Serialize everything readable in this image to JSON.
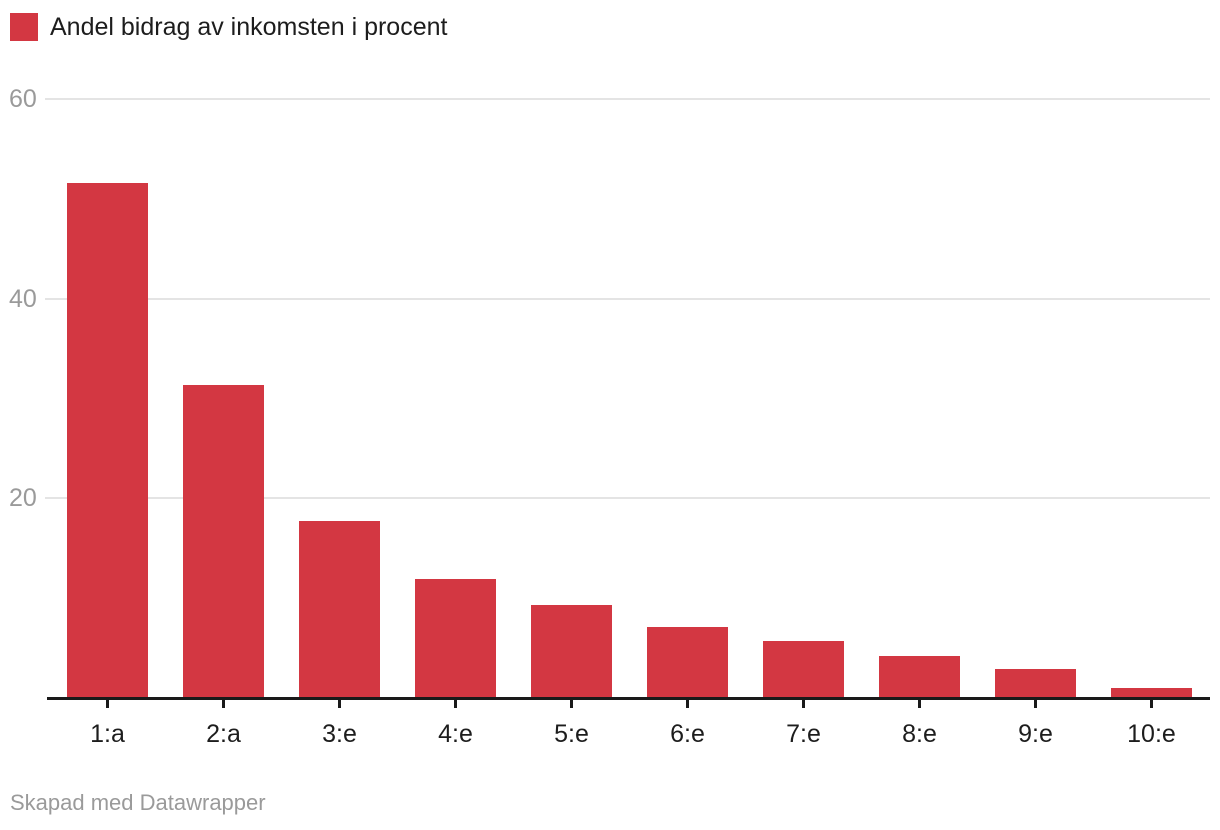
{
  "legend": {
    "label": "Andel bidrag av inkomsten i procent",
    "swatch_color": "#d33742"
  },
  "footer": {
    "text": "Skapad med Datawrapper"
  },
  "chart_data": {
    "type": "bar",
    "title": "",
    "xlabel": "",
    "ylabel": "",
    "categories": [
      "1:a",
      "2:a",
      "3:e",
      "4:e",
      "5:e",
      "6:e",
      "7:e",
      "8:e",
      "9:e",
      "10:e"
    ],
    "series": [
      {
        "name": "Andel bidrag av inkomsten i procent",
        "values": [
          51.6,
          31.3,
          17.7,
          11.8,
          9.2,
          7.0,
          5.6,
          4.1,
          2.8,
          0.9
        ]
      }
    ],
    "yticks": [
      20,
      40,
      60
    ],
    "ylim": [
      0,
      62
    ],
    "grid": true,
    "legend_position": "top-left",
    "bar_color": "#d33742",
    "gridline_color": "#e4e4e4",
    "axis_color": "#1a1a1a",
    "ytick_label_color": "#9a9a9a",
    "xtick_label_color": "#1d1d1d"
  }
}
